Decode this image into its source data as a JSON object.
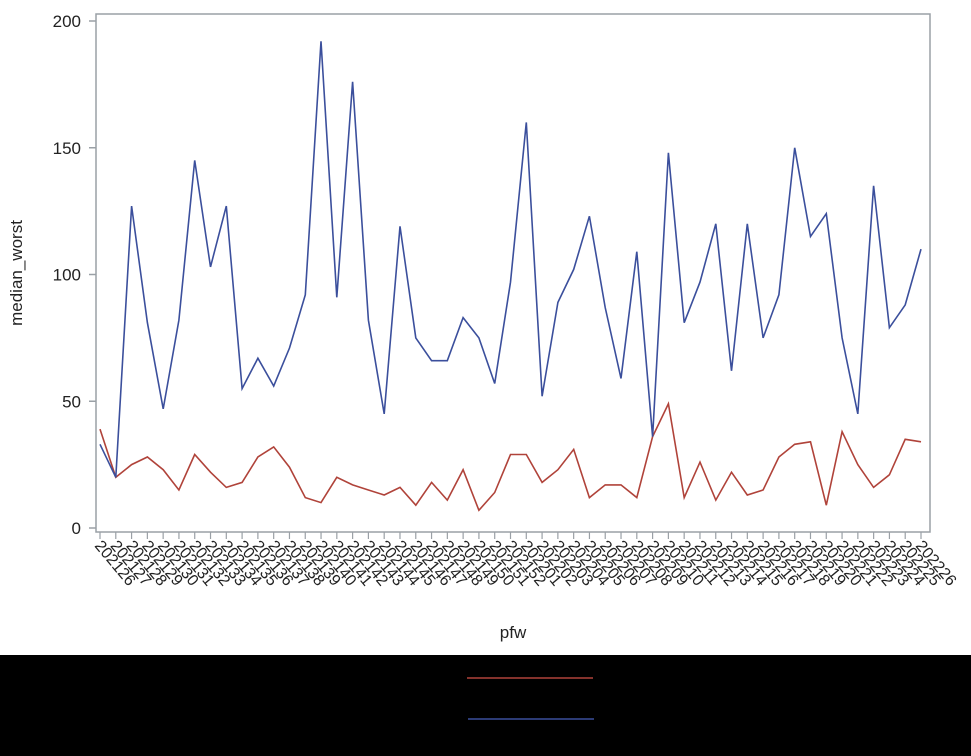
{
  "chart_data": {
    "type": "line",
    "title": "",
    "xlabel": "pfw",
    "ylabel": "median_worst",
    "ylim": [
      0,
      200
    ],
    "yticks": [
      0,
      50,
      100,
      150,
      200
    ],
    "grid": false,
    "legend_position": "bottom",
    "x": [
      "202126",
      "202127",
      "202128",
      "202129",
      "202130",
      "202131",
      "202132",
      "202133",
      "202134",
      "202135",
      "202136",
      "202137",
      "202138",
      "202139",
      "202140",
      "202141",
      "202142",
      "202143",
      "202144",
      "202145",
      "202146",
      "202147",
      "202148",
      "202149",
      "202150",
      "202151",
      "202152",
      "202201",
      "202202",
      "202203",
      "202204",
      "202205",
      "202206",
      "202207",
      "202208",
      "202209",
      "202210",
      "202211",
      "202212",
      "202213",
      "202214",
      "202215",
      "202216",
      "202217",
      "202218",
      "202219",
      "202220",
      "202221",
      "202222",
      "202223",
      "202224",
      "202225",
      "202226"
    ],
    "series": [
      {
        "name": "",
        "color": "#3b4f9c",
        "values": [
          33,
          20,
          127,
          81,
          47,
          82,
          145,
          103,
          127,
          55,
          67,
          56,
          71,
          92,
          192,
          91,
          176,
          82,
          45,
          119,
          75,
          66,
          66,
          83,
          75,
          57,
          97,
          160,
          52,
          89,
          102,
          123,
          87,
          59,
          109,
          36,
          148,
          81,
          97,
          120,
          62,
          120,
          75,
          92,
          150,
          115,
          124,
          75,
          45,
          135,
          79,
          88,
          110
        ]
      },
      {
        "name": "",
        "color": "#b0433a",
        "values": [
          39,
          20,
          25,
          28,
          23,
          15,
          29,
          22,
          16,
          18,
          28,
          32,
          24,
          12,
          10,
          20,
          17,
          15,
          13,
          16,
          9,
          18,
          11,
          23,
          7,
          14,
          29,
          29,
          18,
          23,
          31,
          12,
          17,
          17,
          12,
          36,
          49,
          12,
          26,
          11,
          22,
          13,
          15,
          28,
          33,
          34,
          9,
          38,
          25,
          16,
          21,
          35,
          34
        ]
      }
    ]
  },
  "legend": {
    "entries": [
      {
        "label": "",
        "color": "#b0433a"
      },
      {
        "label": "",
        "color": "#3b4f9c"
      }
    ]
  }
}
